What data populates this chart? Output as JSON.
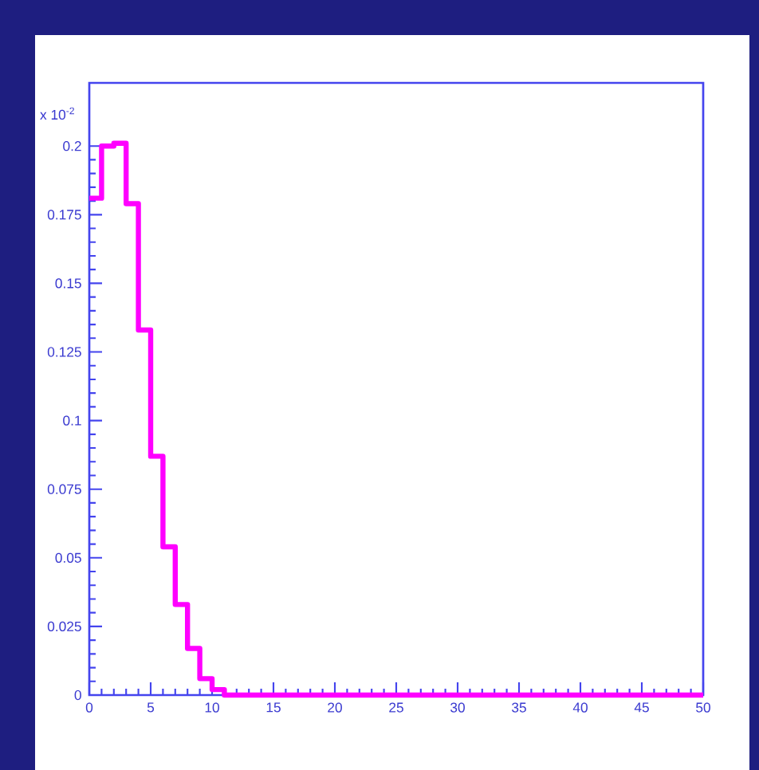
{
  "chart_data": {
    "type": "histogram",
    "color": "#ff00ff",
    "bins": [
      0,
      1,
      2,
      3,
      4,
      5,
      6,
      7,
      8,
      9,
      10,
      11,
      12,
      13,
      14,
      15,
      16,
      17,
      18,
      19,
      20,
      21,
      22,
      23,
      24,
      25,
      26,
      27,
      28,
      29,
      30,
      31,
      32,
      33,
      34,
      35,
      36,
      37,
      38,
      39,
      40,
      41,
      42,
      43,
      44,
      45,
      46,
      47,
      48,
      49,
      50
    ],
    "values": [
      0.181,
      0.2,
      0.201,
      0.179,
      0.133,
      0.087,
      0.054,
      0.033,
      0.017,
      0.006,
      0.002,
      0,
      0,
      0,
      0,
      0,
      0,
      0,
      0,
      0,
      0,
      0,
      0,
      0,
      0,
      0,
      0,
      0,
      0,
      0,
      0,
      0,
      0,
      0,
      0,
      0,
      0,
      0,
      0,
      0,
      0,
      0,
      0,
      0,
      0,
      0,
      0,
      0,
      0,
      0
    ],
    "xlim": [
      0,
      50
    ],
    "ylim": [
      0,
      0.223
    ],
    "xticks": [
      0,
      5,
      10,
      15,
      20,
      25,
      30,
      35,
      40,
      45,
      50
    ],
    "yticks": [
      0,
      0.025,
      0.05,
      0.075,
      0.1,
      0.125,
      0.15,
      0.175,
      0.2
    ],
    "annotations": [
      "x 10$^{-2}$"
    ]
  }
}
